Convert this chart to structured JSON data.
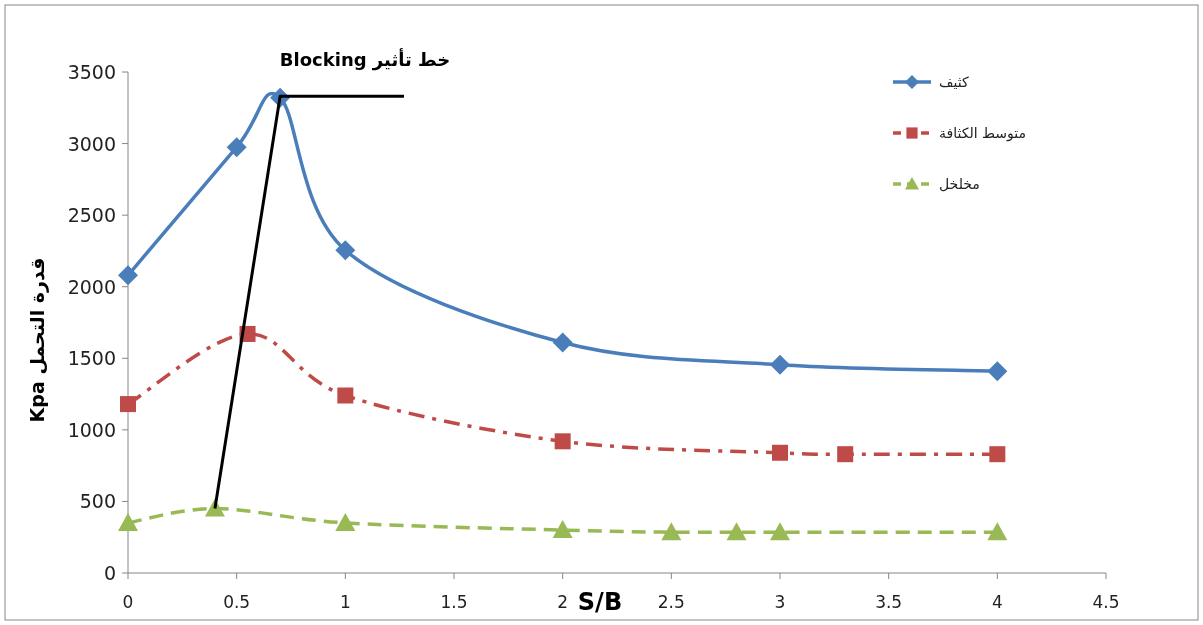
{
  "chart_data": {
    "type": "line",
    "title": "خط تأثير Blocking",
    "xlabel": "S/B",
    "ylabel": "قدرة التحمل Kpa",
    "xlim": [
      0,
      4.5
    ],
    "xticks": [
      0,
      0.5,
      1,
      1.5,
      2,
      2.5,
      3,
      3.5,
      4,
      4.5
    ],
    "ylim": [
      0,
      3500
    ],
    "yticks": [
      0,
      500,
      1000,
      1500,
      2000,
      2500,
      3000,
      3500
    ],
    "grid": false,
    "legend": "top right",
    "series": [
      {
        "name": "كثيف",
        "color": "#4a7ebb",
        "marker": "diamond",
        "line_style": "solid",
        "x": [
          0,
          0.5,
          0.7,
          1,
          2,
          3,
          4
        ],
        "values": [
          2080,
          2975,
          3320,
          2255,
          1610,
          1455,
          1410
        ]
      },
      {
        "name": "متوسط الكثافة",
        "color": "#be4b48",
        "marker": "square",
        "line_style": "dashdot",
        "x": [
          0,
          0.55,
          1,
          2,
          3,
          3.3,
          4
        ],
        "values": [
          1180,
          1670,
          1240,
          920,
          840,
          830,
          830
        ]
      },
      {
        "name": "مخلخل",
        "color": "#98b954",
        "marker": "triangle",
        "line_style": "dashed",
        "x": [
          0,
          0.4,
          1,
          2,
          2.5,
          2.8,
          3,
          4
        ],
        "values": [
          350,
          450,
          350,
          300,
          285,
          285,
          285,
          285
        ]
      },
      {
        "color": "#000000",
        "marker": "none",
        "line_style": "solid",
        "x": [
          0.4,
          0.7,
          1.27
        ],
        "values": [
          450,
          3330,
          3330
        ]
      }
    ]
  }
}
